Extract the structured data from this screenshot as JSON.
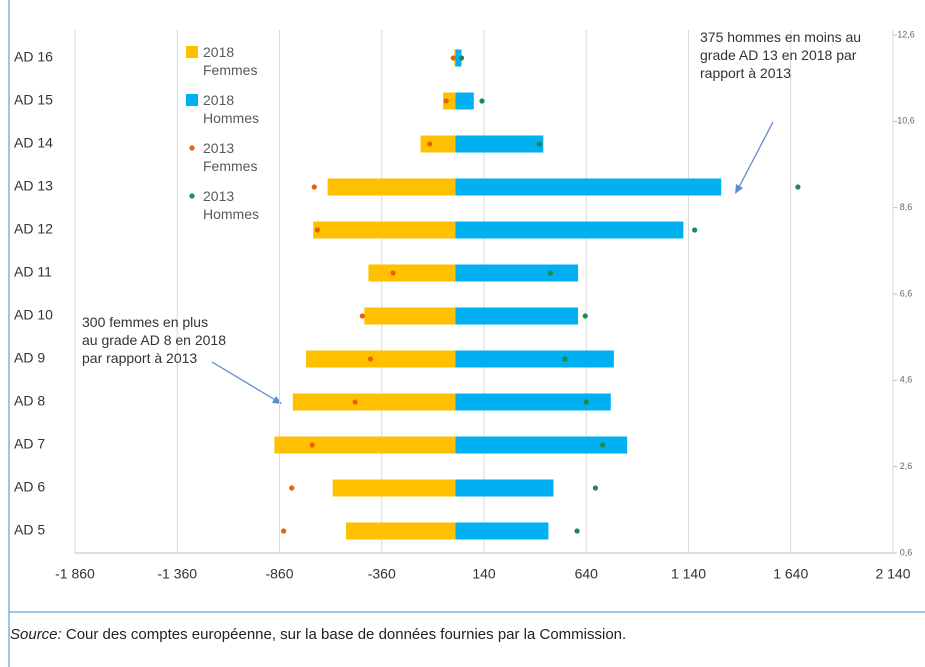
{
  "chart_data": {
    "type": "bar",
    "categories": [
      "AD 16",
      "AD 15",
      "AD 14",
      "AD 13",
      "AD 12",
      "AD 11",
      "AD 10",
      "AD 9",
      "AD 8",
      "AD 7",
      "AD 6",
      "AD 5"
    ],
    "series": [
      {
        "name": "2018 Femmes",
        "color": "#ffc000",
        "style": "bar",
        "values": [
          -5,
          -60,
          -170,
          -625,
          -695,
          -425,
          -445,
          -730,
          -795,
          -885,
          -600,
          -535
        ]
      },
      {
        "name": "2018 Hommes",
        "color": "#00b0f0",
        "style": "bar",
        "values": [
          30,
          90,
          430,
          1300,
          1115,
          600,
          600,
          775,
          760,
          840,
          480,
          455
        ]
      },
      {
        "name": "2013 Femmes",
        "color": "#ed5f00",
        "style": "dot",
        "values": [
          -10,
          -45,
          -125,
          -690,
          -675,
          -305,
          -455,
          -415,
          -490,
          -700,
          -800,
          -840
        ]
      },
      {
        "name": "2013 Hommes",
        "color": "#1f8a4c",
        "style": "dot",
        "values": [
          30,
          130,
          410,
          1675,
          1170,
          465,
          635,
          535,
          640,
          720,
          685,
          595
        ]
      }
    ],
    "xlim": [
      -1860,
      2140
    ],
    "xticks": [
      {
        "value": -1860,
        "label": "-1 860"
      },
      {
        "value": -1360,
        "label": "-1 360"
      },
      -860,
      -360,
      140,
      640,
      {
        "value": 1140,
        "label": "1 140"
      },
      {
        "value": 1640,
        "label": "1 640"
      },
      {
        "value": 2140,
        "label": "2 140"
      }
    ],
    "y2lim": [
      0.6,
      12.6
    ],
    "y2ticks": [
      {
        "value": 0.6,
        "label": "0,6"
      },
      {
        "value": 2.6,
        "label": "2,6"
      },
      {
        "value": 4.6,
        "label": "4,6"
      },
      {
        "value": 6.6,
        "label": "6,6"
      },
      {
        "value": 8.6,
        "label": "8,6"
      },
      {
        "value": 10.6,
        "label": "10,6"
      },
      {
        "value": 12.6,
        "label": "12,6"
      }
    ],
    "grid": true,
    "annotations": [
      "375 hommes en moins au grade AD 13 en 2018 par rapport à 2013",
      "300 femmes en plus au grade AD 8 en 2018 par rapport à 2013"
    ],
    "source_label": "Source:",
    "source": "Cour des comptes européenne, sur la base de données fournies par la Commission."
  }
}
